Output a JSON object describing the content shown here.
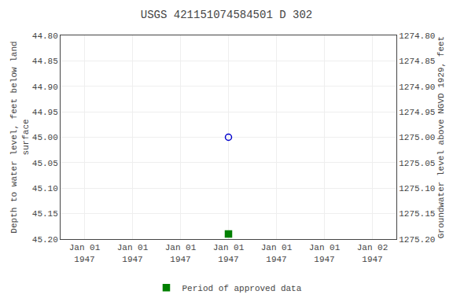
{
  "chart_data": {
    "type": "scatter",
    "title": "USGS 421151074584501 D 302",
    "ylabel": "Depth to water level, feet below land\nsurface",
    "y2label": "Groundwater level above NGVD 1929, feet",
    "categories": [
      "Jan 01\n1947",
      "Jan 01\n1947",
      "Jan 01\n1947",
      "Jan 01\n1947",
      "Jan 01\n1947",
      "Jan 01\n1947",
      "Jan 02\n1947"
    ],
    "series": [
      {
        "color": "#0000cc",
        "marker": "circle-open",
        "values": [
          null,
          null,
          null,
          45.0,
          null,
          null,
          null
        ]
      },
      {
        "name": "Period of approved data",
        "color": "#008000",
        "marker": "square",
        "values": [
          null,
          null,
          null,
          45.19,
          null,
          null,
          null
        ]
      }
    ],
    "ylim": [
      45.2,
      44.8
    ],
    "yticks": [
      {
        "value": 44.8,
        "label": "44.80"
      },
      {
        "value": 44.85,
        "label": "44.85"
      },
      {
        "value": 44.9,
        "label": "44.90"
      },
      {
        "value": 44.95,
        "label": "44.95"
      },
      {
        "value": 45.0,
        "label": "45.00"
      },
      {
        "value": 45.05,
        "label": "45.05"
      },
      {
        "value": 45.1,
        "label": "45.10"
      },
      {
        "value": 45.15,
        "label": "45.15"
      },
      {
        "value": 45.2,
        "label": "45.20"
      }
    ],
    "y2lim": [
      1275.2,
      1274.8
    ],
    "y2ticks": [
      {
        "value": 1274.8,
        "label": "1274.80"
      },
      {
        "value": 1274.85,
        "label": "1274.85"
      },
      {
        "value": 1274.9,
        "label": "1274.90"
      },
      {
        "value": 1274.95,
        "label": "1274.95"
      },
      {
        "value": 1275.0,
        "label": "1275.00"
      },
      {
        "value": 1275.05,
        "label": "1275.05"
      },
      {
        "value": 1275.1,
        "label": "1275.10"
      },
      {
        "value": 1275.15,
        "label": "1275.15"
      },
      {
        "value": 1275.2,
        "label": "1275.20"
      }
    ],
    "grid": true,
    "legend": "bottom"
  }
}
